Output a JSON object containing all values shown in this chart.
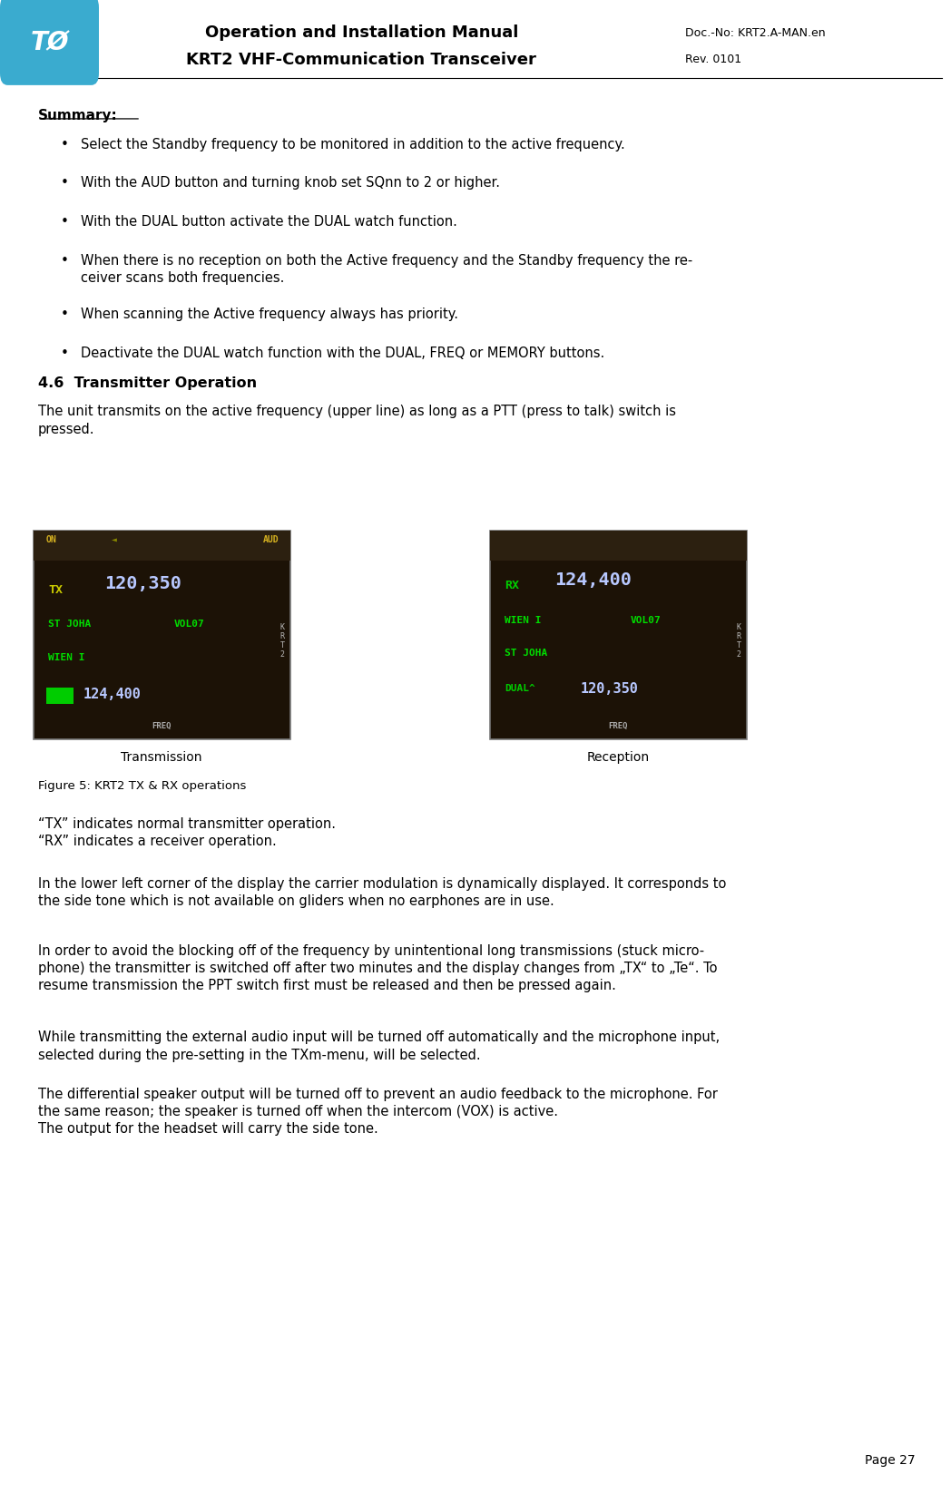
{
  "page_width": 10.48,
  "page_height": 16.47,
  "bg_color": "#ffffff",
  "header": {
    "logo_bg": "#3aabcf",
    "logo_text": "TØ",
    "title1": "Operation and Installation Manual",
    "title2": "KRT2 VHF-Communication Transceiver",
    "doc_no": "Doc.-No: KRT2.A-MAN.en",
    "rev": "Rev. 0101"
  },
  "summary_label": "Summary:",
  "bullets": [
    "Select the Standby frequency to be monitored in addition to the active frequency.",
    "With the AUD button and turning knob set SQnn to 2 or higher.",
    "With the DUAL button activate the DUAL watch function.",
    "When there is no reception on both the Active frequency and the Standby frequency the re-\nceiver scans both frequencies.",
    "When scanning the Active frequency always has priority.",
    "Deactivate the DUAL watch function with the DUAL, FREQ or MEMORY buttons."
  ],
  "section_title": "4.6  Transmitter Operation",
  "intro_text": "The unit transmits on the active frequency (upper line) as long as a PTT (press to talk) switch is\npressed.",
  "caption_left": "Transmission",
  "caption_right": "Reception",
  "figure_caption": "Figure 5: KRT2 TX & RX operations",
  "para1": "“TX” indicates normal transmitter operation.\n“RX” indicates a receiver operation.",
  "para2": "In the lower left corner of the display the carrier modulation is dynamically displayed. It corresponds to\nthe side tone which is not available on gliders when no earphones are in use.",
  "para3": "In order to avoid the blocking off of the frequency by unintentional long transmissions (stuck micro-\nphone) the transmitter is switched off after two minutes and the display changes from „TX“ to „Te“. To\nresume transmission the PPT switch first must be released and then be pressed again.",
  "para4": "While transmitting the external audio input will be turned off automatically and the microphone input,\nselected during the pre-setting in the TXm-menu, will be selected.",
  "para5": "The differential speaker output will be turned off to prevent an audio feedback to the microphone. For\nthe same reason; the speaker is turned off when the intercom (VOX) is active.\nThe output for the headset will carry the side tone.",
  "page_number": "Page 27"
}
